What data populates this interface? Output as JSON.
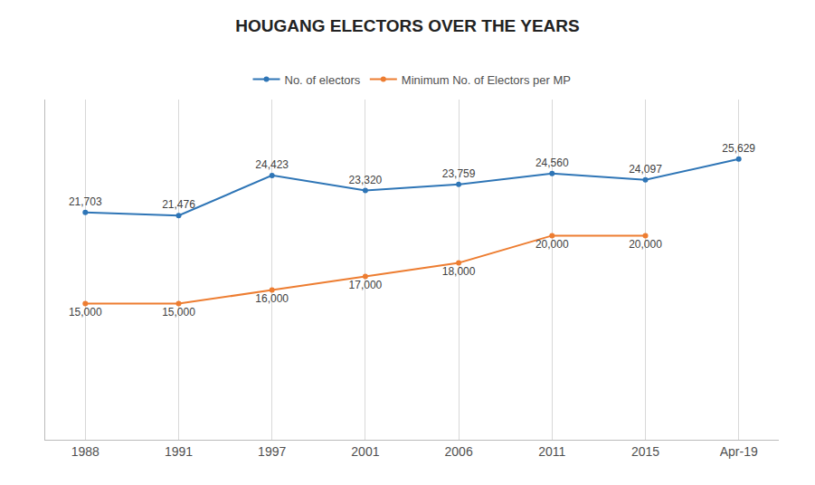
{
  "chart_data": {
    "type": "line",
    "title": "HOUGANG ELECTORS OVER THE YEARS",
    "categories": [
      "1988",
      "1991",
      "1997",
      "2001",
      "2006",
      "2011",
      "2015",
      "Apr-19"
    ],
    "series": [
      {
        "name": "No. of electors",
        "color": "#2E75B6",
        "marker": "circle",
        "values": [
          21703,
          21476,
          24423,
          23320,
          23759,
          24560,
          24097,
          25629
        ],
        "value_labels": [
          "21,703",
          "21,476",
          "24,423",
          "23,320",
          "23,759",
          "24,560",
          "24,097",
          "25,629"
        ]
      },
      {
        "name": "Minimum No. of Electors per MP",
        "color": "#ED7D31",
        "marker": "circle",
        "values": [
          15000,
          15000,
          16000,
          17000,
          18000,
          20000,
          20000,
          null
        ],
        "value_labels": [
          "15,000",
          "15,000",
          "16,000",
          "17,000",
          "18,000",
          "20,000",
          "20,000",
          null
        ]
      }
    ],
    "ylim": [
      5000,
      30000
    ],
    "grid": true,
    "legend": "top",
    "data_labels": true,
    "tick_labels": "x"
  }
}
